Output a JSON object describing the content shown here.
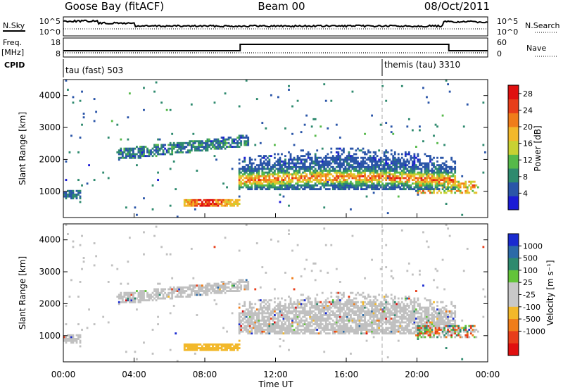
{
  "header": {
    "station": "Goose Bay (fitACF)",
    "beam": "Beam 00",
    "date": "08/Oct/2011"
  },
  "labels": {
    "nsky": "N.Sky",
    "nsearch": "N.Search",
    "freq": "Freq.",
    "mhz": "[MHz]",
    "nave": "Nave",
    "cpid": "CPID",
    "cpid_mode1": "tau (fast) 503",
    "cpid_mode2": "themis (tau) 3310"
  },
  "noise_panel": {
    "left_ticks": [
      "10^5",
      "10^0"
    ],
    "right_ticks": [
      "10^5",
      "10^0"
    ]
  },
  "freq_panel": {
    "left_ticks": [
      "18",
      "8"
    ],
    "right_ticks": [
      "60",
      "0"
    ]
  },
  "chart_data": [
    {
      "type": "heatmap",
      "quantity": "Power",
      "xlabel": "",
      "ylabel": "Slant Range [km]",
      "xlim": [
        0,
        24
      ],
      "ylim": [
        180,
        4500
      ],
      "yticks": [
        "4000",
        "3000",
        "2000",
        "1000"
      ],
      "yvalues": [
        4000,
        3000,
        2000,
        1000
      ],
      "colorbar": {
        "label": "Power [dB]",
        "ticks": [
          "28",
          "24",
          "20",
          "16",
          "12",
          "8",
          "4"
        ],
        "tickvalues": [
          28,
          24,
          20,
          16,
          12,
          8,
          4
        ],
        "range": [
          0,
          30
        ]
      }
    },
    {
      "type": "heatmap",
      "quantity": "Velocity",
      "xlabel": "Time UT",
      "ylabel": "Slant Range [km]",
      "xlim": [
        0,
        24
      ],
      "ylim": [
        180,
        4500
      ],
      "yticks": [
        "4000",
        "3000",
        "2000",
        "1000"
      ],
      "yvalues": [
        4000,
        3000,
        2000,
        1000
      ],
      "xticks": [
        "00:00",
        "04:00",
        "08:00",
        "12:00",
        "16:00",
        "20:00",
        "00:00"
      ],
      "xvalues": [
        0,
        4,
        8,
        12,
        16,
        20,
        24
      ],
      "colorbar": {
        "label": "Velocity [m s⁻¹]",
        "ticks": [
          "1000",
          "500",
          "100",
          "25",
          "-25",
          "-100",
          "-500",
          "-1000"
        ]
      }
    }
  ],
  "colors": {
    "power_scale": [
      "#1b1bd6",
      "#2a55a8",
      "#2e8a6e",
      "#56b94a",
      "#c8d132",
      "#f2b82a",
      "#f07d1a",
      "#e83e1a",
      "#e01010"
    ],
    "velocity_scale": [
      "#1a2bd0",
      "#2c6aa8",
      "#2e8a6e",
      "#63c43a",
      "#c8c8c8",
      "#c8c8c8",
      "#f2b82a",
      "#f07d1a",
      "#e83e1a",
      "#e01010"
    ],
    "ground_scatter": "#c0c0c0"
  }
}
